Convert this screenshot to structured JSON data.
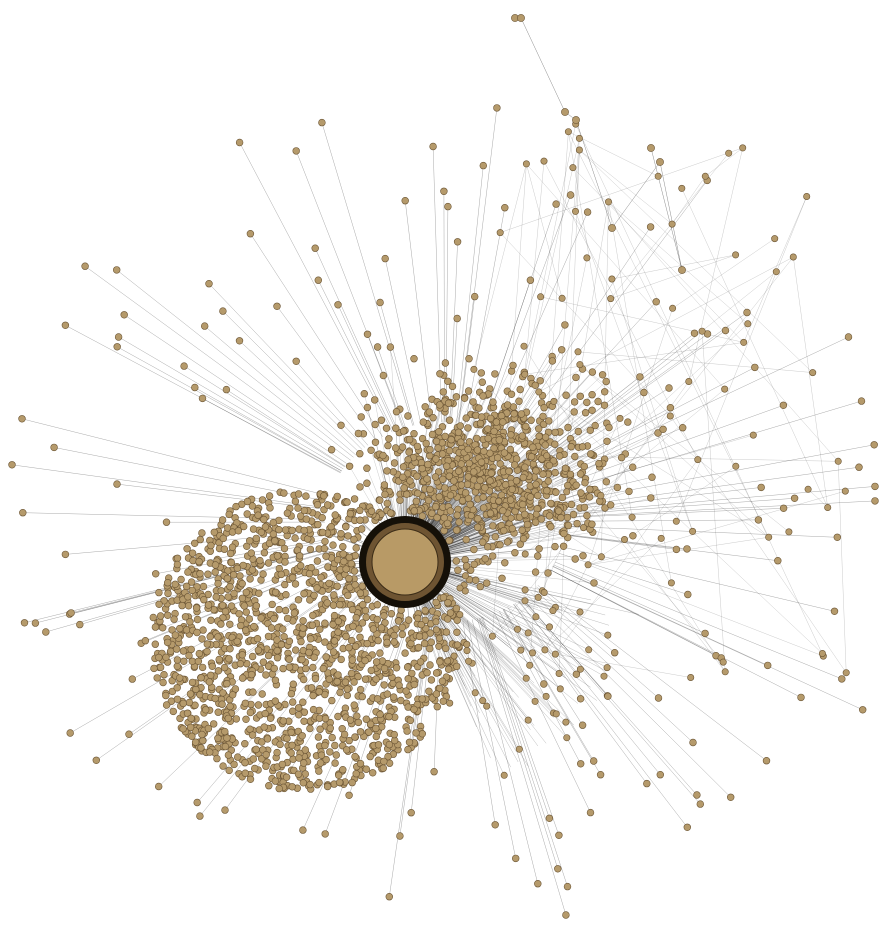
{
  "graph": {
    "type": "network",
    "labels": [],
    "colors": {
      "background": "#ffffff",
      "node_fill": "#b59a6b",
      "node_stroke": "#6b5535",
      "edge": "#2b2b2b",
      "hub_ring_outer": "#151008",
      "hub_ring_inner": "#6e5432",
      "hub_fill": "#b89a66"
    }
  }
}
